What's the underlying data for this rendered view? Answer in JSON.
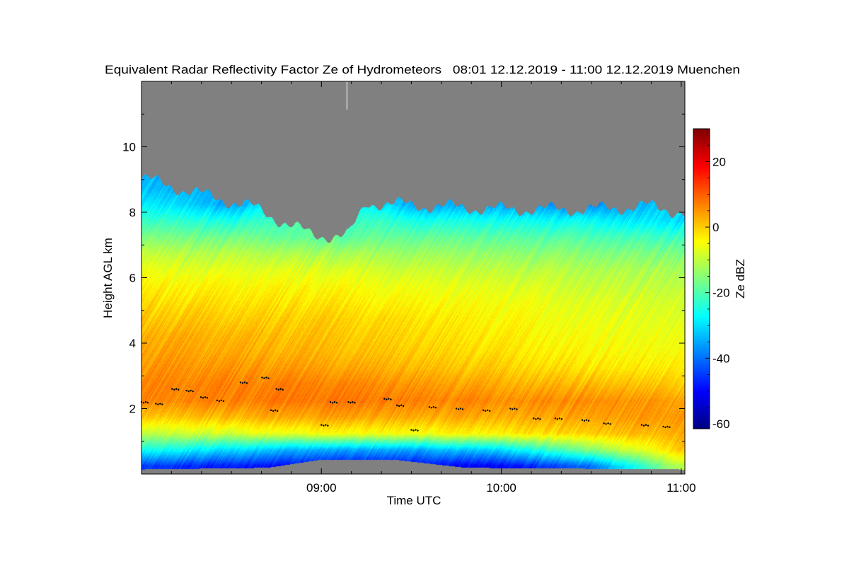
{
  "chart_data": {
    "type": "heatmap",
    "title": "Equivalent Radar Reflectivity Factor Ze of Hydrometeors   08:01 12.12.2019 - 11:00 12.12.2019 Muenchen",
    "xlabel": "Time UTC",
    "ylabel": "Height AGL km",
    "colorbar_label": "Ze dBZ",
    "x_range_hours": [
      8.0,
      11.02
    ],
    "y_range_km": [
      0,
      12
    ],
    "x_ticks": [
      {
        "value": 9,
        "label": "09:00"
      },
      {
        "value": 10,
        "label": "10:00"
      },
      {
        "value": 11,
        "label": "11:00"
      }
    ],
    "y_ticks": [
      {
        "value": 2,
        "label": "2"
      },
      {
        "value": 4,
        "label": "4"
      },
      {
        "value": 6,
        "label": "6"
      },
      {
        "value": 8,
        "label": "8"
      },
      {
        "value": 10,
        "label": "10"
      }
    ],
    "colorbar_range": [
      -61.5,
      30
    ],
    "colorbar_ticks": [
      {
        "value": 20,
        "label": "20"
      },
      {
        "value": 0,
        "label": "0"
      },
      {
        "value": -20,
        "label": "-20"
      },
      {
        "value": -40,
        "label": "-40"
      },
      {
        "value": -60,
        "label": "-60"
      }
    ],
    "colormap": "jet",
    "no_data_color": "#808080",
    "grid_times_hours": [
      8.0,
      8.5,
      9.0,
      9.5,
      10.0,
      10.5,
      11.0
    ],
    "grid_heights_km": [
      0.25,
      0.75,
      1.25,
      1.75,
      2.25,
      2.75,
      3.25,
      3.75,
      4.25,
      4.75,
      5.25,
      5.75,
      6.25,
      6.75,
      7.25,
      7.75,
      8.25,
      8.75
    ],
    "ze_dbz": [
      [
        -45,
        -48,
        -50,
        -50,
        -50,
        -40,
        -10
      ],
      [
        -25,
        -30,
        -35,
        -35,
        -30,
        -15,
        0
      ],
      [
        -10,
        -8,
        -5,
        -5,
        -3,
        0,
        3
      ],
      [
        0,
        2,
        4,
        3,
        3,
        4,
        5
      ],
      [
        6,
        7,
        8,
        7,
        6,
        6,
        4
      ],
      [
        6,
        7,
        7,
        5,
        3,
        2,
        0
      ],
      [
        5,
        5,
        4,
        2,
        0,
        -2,
        -3
      ],
      [
        4,
        3,
        2,
        0,
        -2,
        -4,
        -5
      ],
      [
        3,
        2,
        1,
        -1,
        -3,
        -5,
        -6
      ],
      [
        1,
        0,
        0,
        -2,
        -4,
        -6,
        -7
      ],
      [
        -1,
        -2,
        -2,
        -4,
        -5,
        -7,
        -8
      ],
      [
        -3,
        -4,
        -4,
        -6,
        -7,
        -9,
        -10
      ],
      [
        -6,
        -7,
        -7,
        -9,
        -10,
        -11,
        -12
      ],
      [
        -10,
        -11,
        -12,
        -13,
        -14,
        -15,
        -16
      ],
      [
        -16,
        -17,
        -19,
        -18,
        -19,
        -20,
        -22
      ],
      [
        -22,
        -25,
        null,
        -25,
        -26,
        -27,
        -30
      ],
      [
        -28,
        -35,
        null,
        -35,
        -35,
        -38,
        null
      ],
      [
        -33,
        null,
        null,
        null,
        null,
        null,
        null
      ]
    ],
    "cloud_top_km": [
      {
        "t": 8.0,
        "h": 9.05
      },
      {
        "t": 8.3,
        "h": 8.6
      },
      {
        "t": 8.6,
        "h": 8.2
      },
      {
        "t": 8.95,
        "h": 7.3
      },
      {
        "t": 9.15,
        "h": 7.3
      },
      {
        "t": 9.25,
        "h": 8.3
      },
      {
        "t": 9.6,
        "h": 8.2
      },
      {
        "t": 10.0,
        "h": 8.1
      },
      {
        "t": 10.5,
        "h": 8.1
      },
      {
        "t": 10.8,
        "h": 8.2
      },
      {
        "t": 11.02,
        "h": 8.0
      }
    ],
    "echo_base_km": [
      {
        "t": 8.0,
        "h": 0.15
      },
      {
        "t": 8.7,
        "h": 0.2
      },
      {
        "t": 9.0,
        "h": 0.45
      },
      {
        "t": 9.4,
        "h": 0.45
      },
      {
        "t": 9.8,
        "h": 0.2
      },
      {
        "t": 11.02,
        "h": 0.15
      }
    ],
    "melting_layer_points": [
      {
        "t": 8.0,
        "h": 2.2
      },
      {
        "t": 8.08,
        "h": 2.15
      },
      {
        "t": 8.17,
        "h": 2.6
      },
      {
        "t": 8.25,
        "h": 2.55
      },
      {
        "t": 8.33,
        "h": 2.35
      },
      {
        "t": 8.42,
        "h": 2.25
      },
      {
        "t": 8.55,
        "h": 2.8
      },
      {
        "t": 8.67,
        "h": 2.95
      },
      {
        "t": 8.75,
        "h": 2.6
      },
      {
        "t": 8.72,
        "h": 1.95
      },
      {
        "t": 9.0,
        "h": 1.5
      },
      {
        "t": 9.05,
        "h": 2.2
      },
      {
        "t": 9.15,
        "h": 2.2
      },
      {
        "t": 9.35,
        "h": 2.3
      },
      {
        "t": 9.42,
        "h": 2.1
      },
      {
        "t": 9.5,
        "h": 1.35
      },
      {
        "t": 9.6,
        "h": 2.05
      },
      {
        "t": 9.75,
        "h": 2.0
      },
      {
        "t": 9.9,
        "h": 1.95
      },
      {
        "t": 10.05,
        "h": 2.0
      },
      {
        "t": 10.18,
        "h": 1.7
      },
      {
        "t": 10.3,
        "h": 1.7
      },
      {
        "t": 10.45,
        "h": 1.65
      },
      {
        "t": 10.57,
        "h": 1.55
      },
      {
        "t": 10.78,
        "h": 1.5
      },
      {
        "t": 10.9,
        "h": 1.45
      }
    ]
  }
}
